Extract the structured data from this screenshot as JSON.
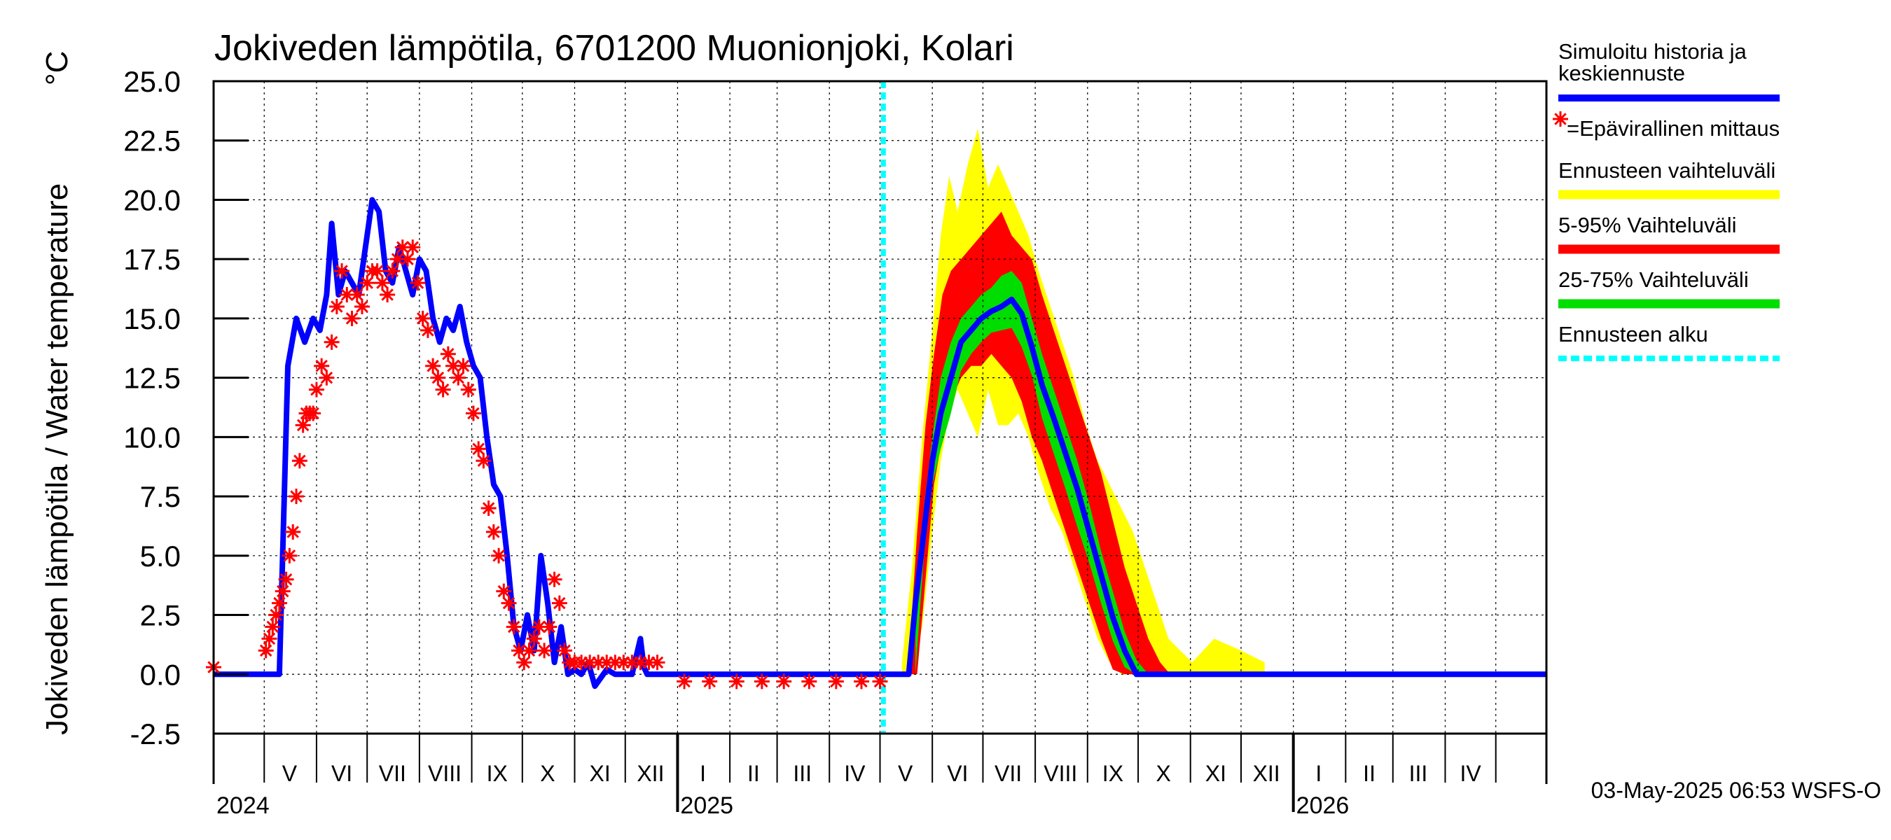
{
  "chart_data": {
    "type": "line",
    "title": "Jokiveden lämpötila, 6701200 Muonionjoki, Kolari",
    "ylabel": "Jokiveden lämpötila / Water temperature",
    "yunit": "°C",
    "ylim": [
      -2.5,
      25.0
    ],
    "yticks": [
      "25.0",
      "22.5",
      "20.0",
      "17.5",
      "15.0",
      "12.5",
      "10.0",
      "7.5",
      "5.0",
      "2.5",
      "0.0",
      "-2.5"
    ],
    "xlim": [
      "2024-04-01",
      "2026-05-31"
    ],
    "grid": true,
    "forecast_start": "2025-05-03",
    "months": [
      "V",
      "VI",
      "VII",
      "VIII",
      "IX",
      "X",
      "XI",
      "XII",
      "I",
      "II",
      "III",
      "IV",
      "V",
      "VI",
      "VII",
      "VIII",
      "IX",
      "X",
      "XI",
      "XII",
      "I",
      "II",
      "III",
      "IV"
    ],
    "years": [
      "2024",
      "2025",
      "2026"
    ],
    "legend": [
      {
        "label": "Simuloitu historia ja keskiennuste",
        "color": "#0000ff",
        "style": "line"
      },
      {
        "label": "=Epävirallinen mittaus",
        "color": "#ff0000",
        "style": "star"
      },
      {
        "label": "Ennusteen vaihteluväli",
        "color": "#ffff00",
        "style": "band"
      },
      {
        "label": "5-95% Vaihteluväli",
        "color": "#ff0000",
        "style": "band"
      },
      {
        "label": "25-75% Vaihteluväli",
        "color": "#00dd00",
        "style": "band"
      },
      {
        "label": "Ennusteen alku",
        "color": "#00ffff",
        "style": "dashed"
      }
    ],
    "series": [
      {
        "name": "Simuloitu historia ja keskiennuste",
        "color": "#0000ff",
        "x": [
          "2024-04-01",
          "2024-05-10",
          "2024-05-15",
          "2024-05-20",
          "2024-05-25",
          "2024-05-30",
          "2024-06-03",
          "2024-06-07",
          "2024-06-10",
          "2024-06-14",
          "2024-06-18",
          "2024-06-22",
          "2024-06-26",
          "2024-06-30",
          "2024-07-04",
          "2024-07-08",
          "2024-07-12",
          "2024-07-16",
          "2024-07-20",
          "2024-07-24",
          "2024-07-28",
          "2024-08-01",
          "2024-08-05",
          "2024-08-09",
          "2024-08-13",
          "2024-08-17",
          "2024-08-21",
          "2024-08-25",
          "2024-08-29",
          "2024-09-02",
          "2024-09-06",
          "2024-09-10",
          "2024-09-14",
          "2024-09-18",
          "2024-09-22",
          "2024-09-26",
          "2024-09-30",
          "2024-10-04",
          "2024-10-08",
          "2024-10-12",
          "2024-10-16",
          "2024-10-20",
          "2024-10-24",
          "2024-10-28",
          "2024-11-01",
          "2024-11-05",
          "2024-11-09",
          "2024-11-13",
          "2024-11-20",
          "2024-11-25",
          "2024-12-05",
          "2024-12-10",
          "2024-12-12",
          "2024-12-14",
          "2025-01-01",
          "2025-05-03",
          "2025-05-18",
          "2025-05-22",
          "2025-05-27",
          "2025-06-01",
          "2025-06-06",
          "2025-06-12",
          "2025-06-18",
          "2025-06-24",
          "2025-06-30",
          "2025-07-06",
          "2025-07-12",
          "2025-07-18",
          "2025-07-24",
          "2025-07-30",
          "2025-08-05",
          "2025-08-12",
          "2025-08-19",
          "2025-08-26",
          "2025-09-02",
          "2025-09-09",
          "2025-09-16",
          "2025-09-23",
          "2025-09-30",
          "2025-10-07",
          "2025-10-14",
          "2025-10-21",
          "2026-05-31"
        ],
        "y": [
          0,
          0,
          13,
          15,
          14,
          15,
          14.5,
          16,
          19,
          16,
          17,
          16.5,
          16,
          18,
          20,
          19.5,
          17,
          16.5,
          18,
          17,
          16,
          17.5,
          17,
          15,
          14,
          15,
          14.5,
          15.5,
          14,
          13,
          12.5,
          10,
          8,
          7.5,
          5,
          2,
          1,
          2.5,
          1,
          5,
          3,
          0.5,
          2,
          0,
          0.2,
          0,
          0.5,
          -0.5,
          0.2,
          0,
          0,
          1.5,
          0.3,
          0,
          0,
          0,
          0,
          3,
          6,
          9,
          11,
          12.5,
          14,
          14.5,
          15,
          15.3,
          15.5,
          15.8,
          15.2,
          13.8,
          12.2,
          10.8,
          9.3,
          7.8,
          6,
          4.2,
          2.4,
          1,
          0,
          0,
          0,
          0,
          0
        ]
      }
    ],
    "bands": [
      {
        "name": "Ennusteen vaihteluväli",
        "color": "#ffff00",
        "x": [
          "2025-05-14",
          "2025-05-20",
          "2025-05-26",
          "2025-06-01",
          "2025-06-06",
          "2025-06-11",
          "2025-06-16",
          "2025-06-22",
          "2025-06-28",
          "2025-07-04",
          "2025-07-10",
          "2025-07-16",
          "2025-07-22",
          "2025-07-28",
          "2025-08-03",
          "2025-08-10",
          "2025-08-17",
          "2025-08-24",
          "2025-08-31",
          "2025-09-07",
          "2025-09-14",
          "2025-09-21",
          "2025-09-28",
          "2025-10-05",
          "2025-10-12",
          "2025-10-19",
          "2025-10-26",
          "2025-11-02",
          "2025-11-15",
          "2025-12-01",
          "2025-12-15"
        ],
        "upper": [
          0.5,
          4.5,
          10,
          14.5,
          18.5,
          21,
          19.5,
          21.5,
          23,
          20.5,
          21.5,
          20.5,
          19.5,
          18.5,
          17,
          15.5,
          14,
          12.5,
          10.5,
          9,
          8,
          7,
          6,
          4.5,
          3,
          1.5,
          1,
          0.5,
          1.5,
          1,
          0.5
        ],
        "lower": [
          0,
          0,
          2,
          6,
          9,
          11,
          12,
          11,
          10,
          12,
          10.5,
          10.5,
          11,
          10,
          8.5,
          7,
          6,
          4.5,
          3,
          1.5,
          0.5,
          0,
          0,
          0,
          0,
          0,
          0,
          0,
          0,
          0,
          0
        ]
      },
      {
        "name": "5-95% Vaihteluväli",
        "color": "#ff0000",
        "x": [
          "2025-05-18",
          "2025-05-23",
          "2025-05-28",
          "2025-06-02",
          "2025-06-07",
          "2025-06-12",
          "2025-06-18",
          "2025-06-24",
          "2025-06-30",
          "2025-07-06",
          "2025-07-12",
          "2025-07-18",
          "2025-07-24",
          "2025-07-30",
          "2025-08-05",
          "2025-08-12",
          "2025-08-19",
          "2025-08-26",
          "2025-09-02",
          "2025-09-09",
          "2025-09-16",
          "2025-09-23",
          "2025-09-30",
          "2025-10-07",
          "2025-10-14",
          "2025-10-20"
        ],
        "upper": [
          0.5,
          6,
          10.5,
          13.5,
          16,
          17,
          17.5,
          18,
          18.5,
          19,
          19.5,
          18.5,
          18,
          17.5,
          16,
          14.5,
          13,
          11.5,
          10,
          8.5,
          6.5,
          4.5,
          3,
          1.5,
          0.5,
          0
        ],
        "lower": [
          0,
          0,
          4,
          8,
          10,
          11.5,
          12.5,
          13,
          13,
          13.5,
          13,
          12.5,
          11.5,
          10,
          9,
          7.5,
          6,
          4.5,
          3,
          1.5,
          0.2,
          0,
          0,
          0,
          0,
          0
        ]
      },
      {
        "name": "25-75% Vaihteluväli",
        "color": "#00dd00",
        "x": [
          "2025-05-22",
          "2025-05-27",
          "2025-06-01",
          "2025-06-06",
          "2025-06-12",
          "2025-06-18",
          "2025-06-24",
          "2025-06-30",
          "2025-07-06",
          "2025-07-12",
          "2025-07-18",
          "2025-07-24",
          "2025-07-30",
          "2025-08-05",
          "2025-08-12",
          "2025-08-19",
          "2025-08-26",
          "2025-09-02",
          "2025-09-09",
          "2025-09-16",
          "2025-09-23",
          "2025-09-30",
          "2025-10-07",
          "2025-10-14"
        ],
        "upper": [
          3,
          7,
          10,
          12.5,
          14,
          15,
          15.5,
          16,
          16.3,
          16.8,
          17,
          16.5,
          15,
          13.5,
          12,
          10.5,
          9,
          7.2,
          5.2,
          3.5,
          1.8,
          0.6,
          0,
          0
        ],
        "lower": [
          0,
          5,
          8,
          9.5,
          11,
          12.8,
          13.5,
          14,
          14.4,
          14.5,
          14.6,
          13.8,
          12.6,
          10.8,
          9.3,
          7.8,
          6.2,
          4.7,
          3,
          1.4,
          0.3,
          0,
          0,
          0
        ]
      }
    ],
    "measurements": {
      "name": "Epävirallinen mittaus",
      "color": "#ff0000",
      "x": [
        "2024-04-01",
        "2024-05-02",
        "2024-05-04",
        "2024-05-06",
        "2024-05-08",
        "2024-05-10",
        "2024-05-12",
        "2024-05-14",
        "2024-05-16",
        "2024-05-18",
        "2024-05-20",
        "2024-05-22",
        "2024-05-24",
        "2024-05-26",
        "2024-05-28",
        "2024-05-30",
        "2024-06-01",
        "2024-06-04",
        "2024-06-07",
        "2024-06-10",
        "2024-06-13",
        "2024-06-16",
        "2024-06-19",
        "2024-06-22",
        "2024-06-25",
        "2024-06-28",
        "2024-07-01",
        "2024-07-04",
        "2024-07-07",
        "2024-07-10",
        "2024-07-13",
        "2024-07-16",
        "2024-07-19",
        "2024-07-22",
        "2024-07-25",
        "2024-07-28",
        "2024-07-31",
        "2024-08-03",
        "2024-08-06",
        "2024-08-09",
        "2024-08-12",
        "2024-08-15",
        "2024-08-18",
        "2024-08-21",
        "2024-08-24",
        "2024-08-27",
        "2024-08-30",
        "2024-09-02",
        "2024-09-05",
        "2024-09-08",
        "2024-09-11",
        "2024-09-14",
        "2024-09-17",
        "2024-09-20",
        "2024-09-23",
        "2024-09-26",
        "2024-09-29",
        "2024-10-02",
        "2024-10-05",
        "2024-10-08",
        "2024-10-11",
        "2024-10-14",
        "2024-10-17",
        "2024-10-20",
        "2024-10-23",
        "2024-10-26",
        "2024-10-29",
        "2024-11-01",
        "2024-11-05",
        "2024-11-10",
        "2024-11-15",
        "2024-11-20",
        "2024-11-25",
        "2024-11-30",
        "2024-12-05",
        "2024-12-10",
        "2024-12-15",
        "2024-12-20",
        "2025-01-05",
        "2025-01-20",
        "2025-02-05",
        "2025-02-20",
        "2025-03-05",
        "2025-03-20",
        "2025-04-05",
        "2025-04-20",
        "2025-05-01"
      ],
      "y": [
        0.3,
        1,
        1.5,
        2,
        2.5,
        3,
        3.5,
        4,
        5,
        6,
        7.5,
        9,
        10.5,
        11,
        11,
        11,
        12,
        13,
        12.5,
        14,
        15.5,
        17,
        16,
        15,
        16,
        15.5,
        16.5,
        17,
        17,
        16.5,
        16,
        17,
        17.5,
        18,
        17.5,
        18,
        16.5,
        15,
        14.5,
        13,
        12.5,
        12,
        13.5,
        13,
        12.5,
        13,
        12,
        11,
        9.5,
        9,
        7,
        6,
        5,
        3.5,
        3,
        2,
        1,
        0.5,
        1,
        1.5,
        2,
        1,
        2,
        4,
        3,
        1,
        0.5,
        0.5,
        0.5,
        0.5,
        0.5,
        0.5,
        0.5,
        0.5,
        0.5,
        0.5,
        0.5,
        0.5,
        -0.3,
        -0.3,
        -0.3,
        -0.3,
        -0.3,
        -0.3,
        -0.3,
        -0.3,
        -0.3
      ]
    }
  },
  "timestamp": "03-May-2025 06:53 WSFS-O"
}
